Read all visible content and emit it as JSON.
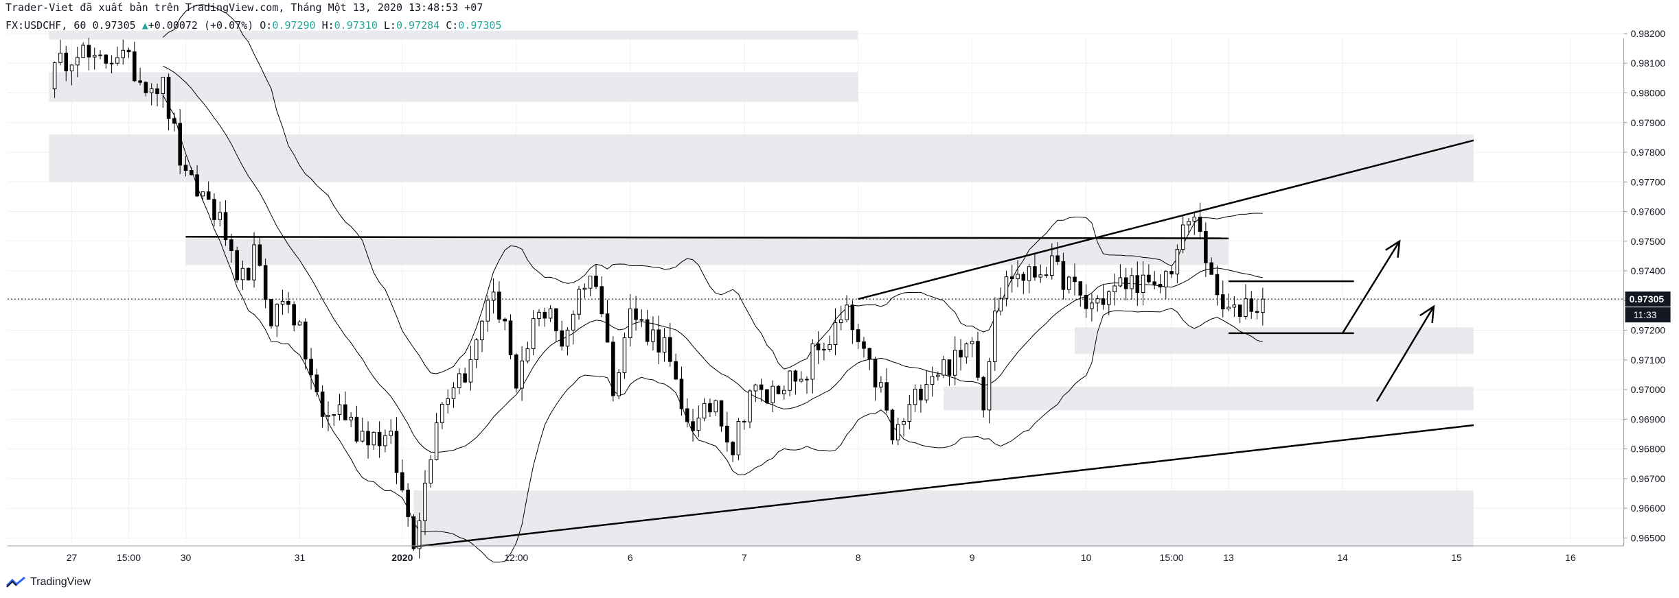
{
  "header": {
    "publisher_line": "Trader-Viet đã xuất bản trên TradingView.com, Tháng Một 13, 2020 13:48:53 +07",
    "symbol": "FX:USDCHF, 60",
    "last": "0.97305",
    "change_arrow": "▲",
    "change": "+0.00072 (+0.07%)",
    "ohlc": [
      {
        "k": "O:",
        "v": "0.97290"
      },
      {
        "k": "H:",
        "v": "0.97310"
      },
      {
        "k": "L:",
        "v": "0.97284"
      },
      {
        "k": "C:",
        "v": "0.97305"
      }
    ]
  },
  "chart_data": {
    "type": "candlestick",
    "symbol": "FX:USDCHF",
    "timeframe": "60",
    "ylim": [
      0.9645,
      0.9823
    ],
    "y_ticks": [
      "0.98200",
      "0.98100",
      "0.98000",
      "0.97900",
      "0.97800",
      "0.97700",
      "0.97600",
      "0.97500",
      "0.97400",
      "0.97300",
      "0.97200",
      "0.97100",
      "0.97000",
      "0.96900",
      "0.96800",
      "0.96700",
      "0.96600",
      "0.96500"
    ],
    "x_ticks": [
      {
        "label": "27",
        "i": 4
      },
      {
        "label": "15:00",
        "i": 14
      },
      {
        "label": "30",
        "i": 24
      },
      {
        "label": "31",
        "i": 44
      },
      {
        "label": "2020",
        "i": 62
      },
      {
        "label": "12:00",
        "i": 82
      },
      {
        "label": "6",
        "i": 102
      },
      {
        "label": "7",
        "i": 122
      },
      {
        "label": "8",
        "i": 142
      },
      {
        "label": "9",
        "i": 162
      },
      {
        "label": "10",
        "i": 182
      },
      {
        "label": "15:00",
        "i": 197
      },
      {
        "label": "13",
        "i": 207
      },
      {
        "label": "14",
        "i": 227
      },
      {
        "label": "15",
        "i": 247
      },
      {
        "label": "16",
        "i": 267
      }
    ],
    "candles_count": 213,
    "price_anchors": [
      [
        0,
        0.9805
      ],
      [
        5,
        0.9816
      ],
      [
        8,
        0.9809
      ],
      [
        12,
        0.9814
      ],
      [
        16,
        0.9805
      ],
      [
        20,
        0.9802
      ],
      [
        24,
        0.977
      ],
      [
        28,
        0.9764
      ],
      [
        31,
        0.9752
      ],
      [
        33,
        0.9733
      ],
      [
        36,
        0.9745
      ],
      [
        39,
        0.9725
      ],
      [
        42,
        0.9731
      ],
      [
        45,
        0.9712
      ],
      [
        48,
        0.969
      ],
      [
        51,
        0.9694
      ],
      [
        54,
        0.9686
      ],
      [
        57,
        0.9685
      ],
      [
        60,
        0.9682
      ],
      [
        62,
        0.9665
      ],
      [
        64,
        0.965
      ],
      [
        66,
        0.9668
      ],
      [
        68,
        0.9692
      ],
      [
        71,
        0.9703
      ],
      [
        74,
        0.9708
      ],
      [
        77,
        0.9732
      ],
      [
        80,
        0.9724
      ],
      [
        82,
        0.9697
      ],
      [
        85,
        0.9722
      ],
      [
        88,
        0.9729
      ],
      [
        90,
        0.9712
      ],
      [
        93,
        0.9735
      ],
      [
        96,
        0.9738
      ],
      [
        99,
        0.9702
      ],
      [
        102,
        0.9726
      ],
      [
        105,
        0.972
      ],
      [
        108,
        0.9715
      ],
      [
        111,
        0.9692
      ],
      [
        114,
        0.9688
      ],
      [
        117,
        0.9697
      ],
      [
        120,
        0.968
      ],
      [
        123,
        0.97
      ],
      [
        126,
        0.9697
      ],
      [
        129,
        0.9704
      ],
      [
        132,
        0.97
      ],
      [
        134,
        0.9712
      ],
      [
        137,
        0.9717
      ],
      [
        140,
        0.9725
      ],
      [
        143,
        0.971
      ],
      [
        146,
        0.97
      ],
      [
        148,
        0.9683
      ],
      [
        151,
        0.9693
      ],
      [
        154,
        0.9705
      ],
      [
        157,
        0.9708
      ],
      [
        160,
        0.971
      ],
      [
        162,
        0.972
      ],
      [
        164,
        0.9695
      ],
      [
        166,
        0.973
      ],
      [
        169,
        0.9739
      ],
      [
        172,
        0.9738
      ],
      [
        175,
        0.9742
      ],
      [
        178,
        0.9738
      ],
      [
        180,
        0.9733
      ],
      [
        182,
        0.9728
      ],
      [
        185,
        0.9731
      ],
      [
        188,
        0.9735
      ],
      [
        191,
        0.9737
      ],
      [
        194,
        0.9732
      ],
      [
        197,
        0.9742
      ],
      [
        200,
        0.9757
      ],
      [
        202,
        0.9755
      ],
      [
        204,
        0.9735
      ],
      [
        206,
        0.9727
      ],
      [
        208,
        0.9725
      ],
      [
        210,
        0.973
      ],
      [
        212,
        0.9728
      ],
      [
        213,
        0.97305
      ]
    ],
    "bollinger_bands": "upper, middle and lower envelope lines around price",
    "zones": [
      {
        "i0": 0,
        "i1": 142,
        "y0": 0.9818,
        "y1": 0.9821
      },
      {
        "i0": 0,
        "i1": 142,
        "y0": 0.9797,
        "y1": 0.9807
      },
      {
        "i0": 0,
        "i1": 250,
        "y0": 0.977,
        "y1": 0.9786
      },
      {
        "i0": 24,
        "i1": 207,
        "y0": 0.9742,
        "y1": 0.9751
      },
      {
        "i0": 180,
        "i1": 250,
        "y0": 0.9712,
        "y1": 0.9721
      },
      {
        "i0": 157,
        "i1": 250,
        "y0": 0.9693,
        "y1": 0.9701
      },
      {
        "i0": 64,
        "i1": 250,
        "y0": 0.9647,
        "y1": 0.9666
      }
    ],
    "trendlines": [
      {
        "i0": 64,
        "y0": 0.9647,
        "i1": 250,
        "y1": 0.9688
      },
      {
        "i0": 142,
        "y0": 0.97305,
        "i1": 250,
        "y1": 0.9784
      },
      {
        "i0": 24,
        "y0": 0.97515,
        "i1": 207,
        "y1": 0.9751
      },
      {
        "i0": 207,
        "y0": 0.97365,
        "i1": 229,
        "y1": 0.97365
      },
      {
        "i0": 207,
        "y0": 0.9719,
        "i1": 229,
        "y1": 0.9719
      }
    ],
    "arrows": [
      {
        "i0": 227,
        "y0": 0.9719,
        "i1": 237,
        "y1": 0.975
      },
      {
        "i0": 233,
        "y0": 0.9696,
        "i1": 243,
        "y1": 0.9728
      }
    ],
    "last_price_label": "0.97305",
    "countdown_label": "11:33"
  },
  "brand": {
    "name": "TradingView"
  },
  "colors": {
    "up": "#ffffff",
    "down": "#000000",
    "zone": "#e8eaed",
    "grid": "#eef0f3",
    "change_up": "#26a69a"
  }
}
